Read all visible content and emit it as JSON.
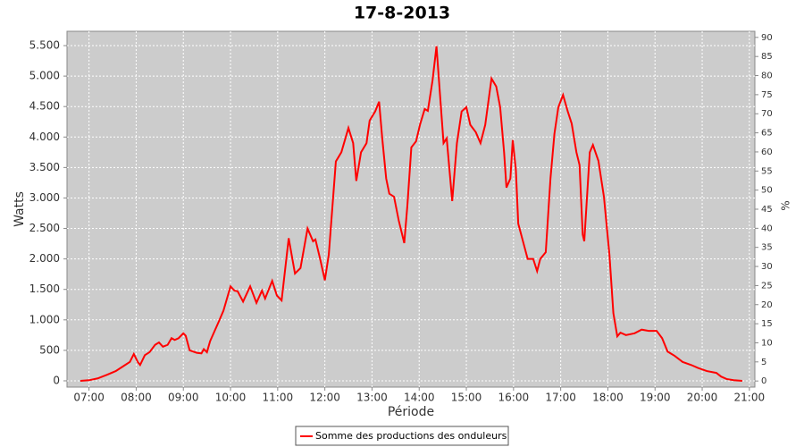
{
  "chart_data": {
    "type": "line",
    "title": "17-8-2013",
    "xlabel": "Période",
    "ylabel": "Watts",
    "y2label": "%",
    "x": [
      "06:49",
      "07:00",
      "07:11",
      "07:23",
      "07:34",
      "07:46",
      "07:52",
      "07:57",
      "08:02",
      "08:05",
      "08:11",
      "08:17",
      "08:24",
      "08:29",
      "08:34",
      "08:40",
      "08:45",
      "08:49",
      "08:54",
      "09:00",
      "09:03",
      "09:08",
      "09:17",
      "09:23",
      "09:26",
      "09:30",
      "09:34",
      "09:45",
      "09:51",
      "10:00",
      "10:05",
      "10:09",
      "10:16",
      "10:25",
      "10:33",
      "10:40",
      "10:44",
      "10:53",
      "10:59",
      "11:05",
      "11:14",
      "11:22",
      "11:29",
      "11:38",
      "11:45",
      "11:48",
      "11:54",
      "12:00",
      "12:05",
      "12:14",
      "12:21",
      "12:30",
      "12:36",
      "12:40",
      "12:46",
      "12:53",
      "12:57",
      "13:04",
      "13:09",
      "13:13",
      "13:18",
      "13:22",
      "13:28",
      "13:34",
      "13:41",
      "13:45",
      "13:50",
      "13:56",
      "14:01",
      "14:07",
      "14:11",
      "14:17",
      "14:22",
      "14:26",
      "14:31",
      "14:35",
      "14:42",
      "14:48",
      "14:54",
      "15:00",
      "15:05",
      "15:12",
      "15:18",
      "15:24",
      "15:32",
      "15:38",
      "15:43",
      "15:48",
      "15:51",
      "15:56",
      "15:59",
      "16:03",
      "16:06",
      "16:12",
      "16:18",
      "16:25",
      "16:30",
      "16:34",
      "16:41",
      "16:47",
      "16:52",
      "16:57",
      "17:03",
      "17:09",
      "17:14",
      "17:20",
      "17:24",
      "17:28",
      "17:30",
      "17:37",
      "17:41",
      "17:48",
      "17:55",
      "18:02",
      "18:07",
      "18:12",
      "18:16",
      "18:23",
      "18:34",
      "18:43",
      "18:52",
      "19:02",
      "19:09",
      "19:16",
      "19:25",
      "19:35",
      "19:46",
      "19:55",
      "20:06",
      "20:18",
      "20:24",
      "20:31",
      "20:40",
      "20:51"
    ],
    "series": [
      {
        "name": "Somme des productions des onduleurs",
        "color": "#ff0000",
        "values": [
          0,
          10,
          40,
          100,
          160,
          260,
          310,
          440,
          310,
          260,
          420,
          470,
          590,
          630,
          560,
          590,
          700,
          670,
          700,
          780,
          740,
          500,
          460,
          450,
          520,
          470,
          650,
          970,
          1150,
          1550,
          1480,
          1470,
          1300,
          1550,
          1280,
          1480,
          1350,
          1640,
          1400,
          1320,
          2340,
          1760,
          1850,
          2500,
          2290,
          2320,
          2000,
          1650,
          2070,
          3600,
          3750,
          4150,
          3900,
          3280,
          3750,
          3900,
          4270,
          4420,
          4580,
          3980,
          3320,
          3070,
          3020,
          2630,
          2260,
          2880,
          3830,
          3930,
          4200,
          4460,
          4430,
          4930,
          5490,
          4780,
          3900,
          3980,
          2950,
          3900,
          4420,
          4490,
          4200,
          4080,
          3900,
          4200,
          4960,
          4830,
          4490,
          3750,
          3170,
          3320,
          3950,
          3460,
          2580,
          2290,
          2000,
          2000,
          1800,
          2000,
          2110,
          3320,
          4050,
          4490,
          4690,
          4420,
          4220,
          3750,
          3540,
          2400,
          2290,
          3750,
          3870,
          3610,
          3020,
          2070,
          1110,
          730,
          790,
          750,
          780,
          840,
          820,
          820,
          700,
          480,
          410,
          310,
          260,
          210,
          160,
          130,
          70,
          30,
          10,
          0
        ]
      }
    ],
    "xlim": [
      "06:32",
      "21:07"
    ],
    "xticks": [
      "07:00",
      "08:00",
      "09:00",
      "10:00",
      "11:00",
      "12:00",
      "13:00",
      "14:00",
      "15:00",
      "16:00",
      "17:00",
      "18:00",
      "19:00",
      "20:00",
      "21:00"
    ],
    "ylim": [
      -103,
      5735
    ],
    "yticks": [
      0,
      500,
      {
        "value": 1000,
        "label": "1.000"
      },
      {
        "value": 1500,
        "label": "1.500"
      },
      {
        "value": 2000,
        "label": "2.000"
      },
      {
        "value": 2500,
        "label": "2.500"
      },
      {
        "value": 3000,
        "label": "3.000"
      },
      {
        "value": 3500,
        "label": "3.500"
      },
      {
        "value": 4000,
        "label": "4.000"
      },
      {
        "value": 4500,
        "label": "4.500"
      },
      {
        "value": 5000,
        "label": "5.000"
      },
      {
        "value": 5500,
        "label": "5.500"
      }
    ],
    "y2lim": [
      -1.6,
      91.6
    ],
    "y2ticks": [
      0,
      5,
      10,
      15,
      20,
      25,
      30,
      35,
      40,
      45,
      50,
      55,
      60,
      65,
      70,
      75,
      80,
      85,
      90
    ],
    "grid": true,
    "legend": "bottom"
  }
}
